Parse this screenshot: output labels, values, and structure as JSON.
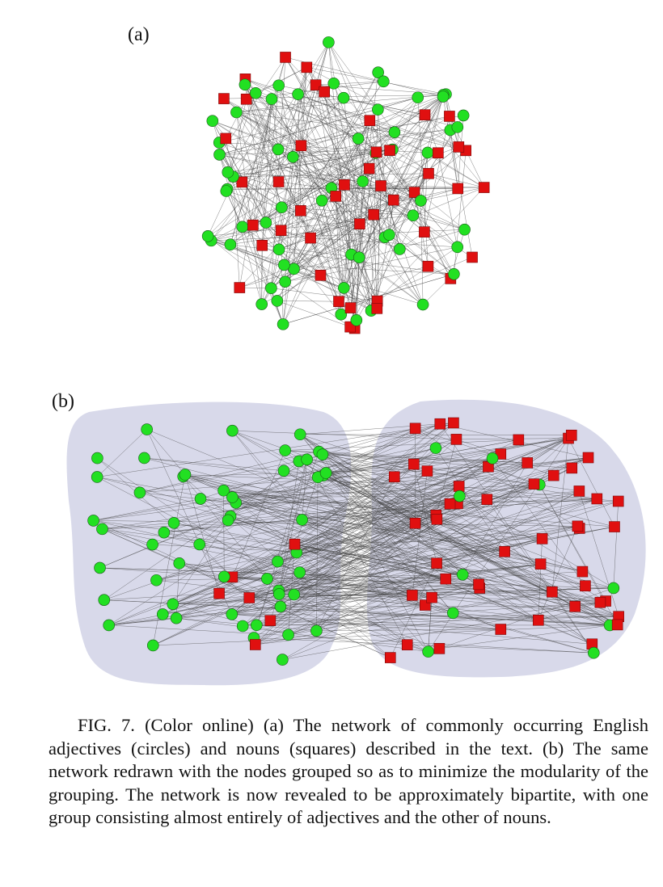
{
  "figure": {
    "panels": [
      {
        "label": "(a)",
        "description_hidden": false
      },
      {
        "label": "(b)"
      }
    ],
    "legend": {
      "adjective_shape": "circle",
      "noun_shape": "square"
    },
    "colors": {
      "adjective": "#22e022",
      "noun": "#e01010",
      "edge": "#444444",
      "group_shade": "#d8d9ea"
    }
  },
  "caption": "FIG. 7. (Color online) (a) The network of commonly occurring English adjectives (circles) and nouns (squares) described in the text. (b) The same network redrawn with the nodes grouped so as to minimize the modularity of the grouping. The network is now revealed to be approximately bipartite, with one group consisting almost entirely of adjectives and the other of nouns."
}
